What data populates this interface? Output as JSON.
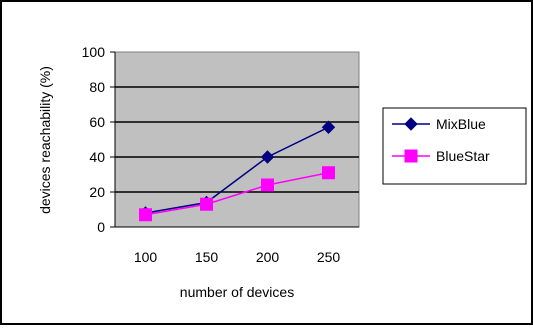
{
  "chart_data": {
    "type": "line",
    "title": "",
    "xlabel": "number of devices",
    "ylabel": "devices reachability (%)",
    "categories": [
      "100",
      "150",
      "200",
      "250"
    ],
    "ylim": [
      0,
      100
    ],
    "yticks": [
      "0",
      "20",
      "40",
      "60",
      "80",
      "100"
    ],
    "grid": "horizontal",
    "legend_position": "right",
    "series": [
      {
        "name": "MixBlue",
        "values": [
          8,
          14,
          40,
          57
        ],
        "color": "#000080",
        "marker": "diamond"
      },
      {
        "name": "BlueStar",
        "values": [
          7,
          13,
          24,
          31
        ],
        "color": "#FF00FF",
        "marker": "square"
      }
    ],
    "plot_background": "#C0C0C0"
  }
}
